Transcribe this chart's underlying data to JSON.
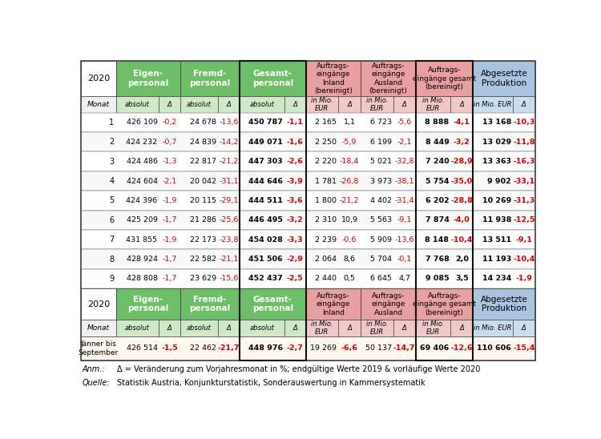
{
  "header_color_green": "#6dbf67",
  "header_color_pink": "#e8a0a0",
  "header_color_blue": "#a8c4e0",
  "subheader_bg": "#f0f0f0",
  "text_red": "#cc0000",
  "outer_border": "#555555",
  "monthly_data": [
    [
      1,
      "426 109",
      -0.2,
      "24 678",
      -13.6,
      "450 787",
      -1.1,
      "2 165",
      1.1,
      "6 723",
      -5.6,
      "8 888",
      -4.1,
      "13 168",
      -10.3
    ],
    [
      2,
      "424 232",
      -0.7,
      "24 839",
      -14.2,
      "449 071",
      -1.6,
      "2 250",
      -5.9,
      "6 199",
      -2.1,
      "8 449",
      -3.2,
      "13 029",
      -11.8
    ],
    [
      3,
      "424 486",
      -1.3,
      "22 817",
      -21.2,
      "447 303",
      -2.6,
      "2 220",
      -18.4,
      "5 021",
      -32.8,
      "7 240",
      -28.9,
      "13 363",
      -16.3
    ],
    [
      4,
      "424 604",
      -2.1,
      "20 042",
      -31.1,
      "444 646",
      -3.9,
      "1 781",
      -26.8,
      "3 973",
      -38.1,
      "5 754",
      -35.0,
      "9 902",
      -33.1
    ],
    [
      5,
      "424 396",
      -1.9,
      "20 115",
      -29.1,
      "444 511",
      -3.6,
      "1 800",
      -21.2,
      "4 402",
      -31.4,
      "6 202",
      -28.8,
      "10 269",
      -31.3
    ],
    [
      6,
      "425 209",
      -1.7,
      "21 286",
      -25.6,
      "446 495",
      -3.2,
      "2 310",
      10.9,
      "5 563",
      -9.1,
      "7 874",
      -4.0,
      "11 938",
      -12.5
    ],
    [
      7,
      "431 855",
      -1.9,
      "22 173",
      -23.8,
      "454 028",
      -3.3,
      "2 239",
      -0.6,
      "5 909",
      -13.6,
      "8 148",
      -10.4,
      "13 511",
      -9.1
    ],
    [
      8,
      "428 924",
      -1.7,
      "22 582",
      -21.1,
      "451 506",
      -2.9,
      "2 064",
      8.6,
      "5 704",
      -0.1,
      "7 768",
      2.0,
      "11 193",
      -10.4
    ],
    [
      9,
      "428 808",
      -1.7,
      "23 629",
      -15.6,
      "452 437",
      -2.5,
      "2 440",
      0.5,
      "6 645",
      4.7,
      "9 085",
      3.5,
      "14 234",
      -1.9
    ]
  ],
  "summary_data": [
    "426 514",
    -1.5,
    "22 462",
    -21.7,
    "448 976",
    -2.7,
    "19 269",
    -6.6,
    "50 137",
    -14.7,
    "69 406",
    -12.6,
    "110 606",
    -15.4
  ],
  "footnote_label1": "Anm.:",
  "footnote_text1": "Δ = Veränderung zum Vorjahresmonat in %; endgültige Werte 2019 & vorläufige Werte 2020",
  "footnote_label2": "Quelle:",
  "footnote_text2": "Statistik Austria, Konjunkturstatistik, Sonderauswertung in Kammersystematik"
}
